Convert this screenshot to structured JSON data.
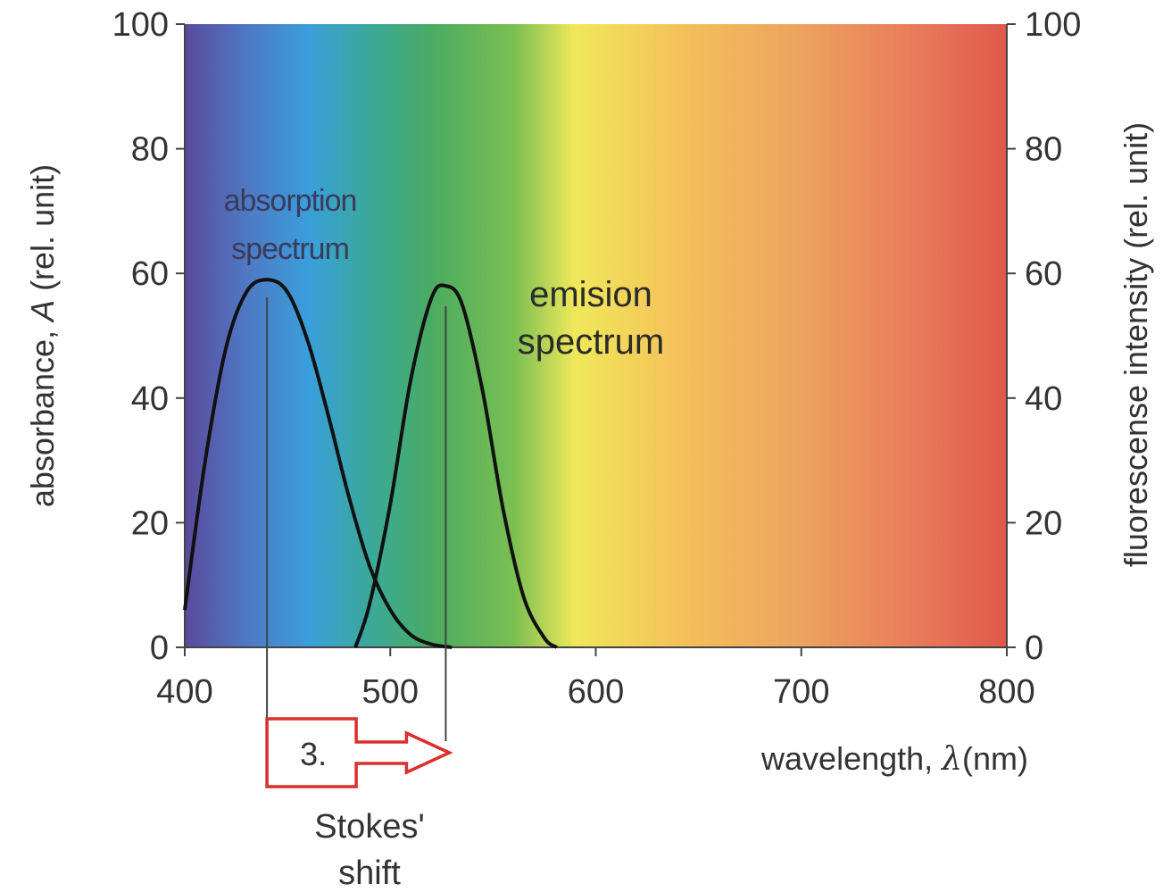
{
  "chart_data": {
    "type": "line",
    "xlabel_prefix": "wavelength, ",
    "xlabel_symbol": "λ",
    "xlabel_suffix": "(nm)",
    "ylabel_left_prefix": "absorbance, ",
    "ylabel_left_symbol": "A",
    "ylabel_left_suffix": " (rel. unit)",
    "ylabel_right": "fluorescense intensity (rel. unit)",
    "xlim": [
      400,
      800
    ],
    "ylim": [
      0,
      100
    ],
    "x_ticks": [
      "400",
      "500",
      "600",
      "700",
      "800"
    ],
    "y_ticks_left": [
      "0",
      "20",
      "40",
      "60",
      "80",
      "100"
    ],
    "y_ticks_right": [
      "0",
      "20",
      "40",
      "60",
      "80",
      "100"
    ],
    "background": "visible spectrum gradient (violet → blue → green → yellow → orange → red)",
    "spectrum_colors": [
      {
        "wavelength": 400,
        "color": "#5a4a9c"
      },
      {
        "wavelength": 430,
        "color": "#4f78c4"
      },
      {
        "wavelength": 460,
        "color": "#3a9edc"
      },
      {
        "wavelength": 490,
        "color": "#3aa99a"
      },
      {
        "wavelength": 520,
        "color": "#4aab62"
      },
      {
        "wavelength": 560,
        "color": "#7abf52"
      },
      {
        "wavelength": 590,
        "color": "#f0e85a"
      },
      {
        "wavelength": 640,
        "color": "#f4c25a"
      },
      {
        "wavelength": 700,
        "color": "#eda35e"
      },
      {
        "wavelength": 760,
        "color": "#e8785a"
      },
      {
        "wavelength": 800,
        "color": "#e0584a"
      }
    ],
    "series": [
      {
        "name": "absorption spectrum",
        "name_line1": "absorption",
        "name_line2": "spectrum",
        "x": [
          400,
          410,
          420,
          430,
          440,
          450,
          460,
          470,
          480,
          490,
          500,
          510,
          520,
          530
        ],
        "y": [
          6,
          30,
          48,
          57,
          59,
          57,
          49,
          37,
          24,
          13,
          6,
          2,
          0.5,
          0
        ]
      },
      {
        "name": "emision spectrum",
        "name_line1": "emision",
        "name_line2": "spectrum",
        "x": [
          483,
          490,
          500,
          510,
          520,
          527,
          535,
          545,
          555,
          565,
          575,
          581
        ],
        "y": [
          0,
          7,
          23,
          43,
          56,
          58,
          55,
          41,
          22,
          8,
          1.5,
          0
        ]
      }
    ],
    "annotations": [
      {
        "type": "stokes_shift",
        "label": "3.",
        "caption_line1": "Stokes'",
        "caption_line2": "shift",
        "from_x": 440,
        "to_x": 527,
        "color": "#d9302c"
      }
    ]
  }
}
